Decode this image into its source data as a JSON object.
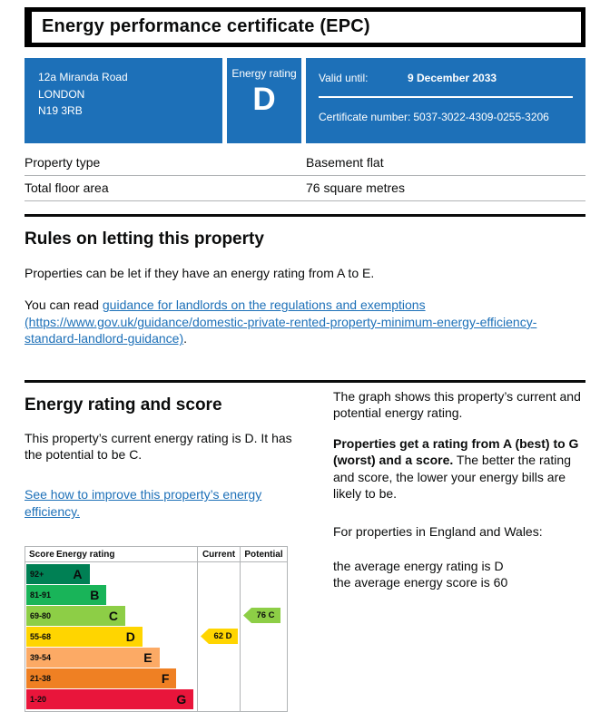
{
  "colors": {
    "govuk_blue": "#1d70b8",
    "border_gray": "#b1b4b6",
    "text_black": "#0b0c0c"
  },
  "header": {
    "title": "Energy performance certificate (EPC)"
  },
  "summary_panel": {
    "address_lines": [
      "12a Miranda Road",
      "LONDON",
      "N19 3RB"
    ],
    "energy_rating_label": "Energy rating",
    "energy_rating_value": "D",
    "valid_until_label": "Valid until:",
    "valid_until_value": "9 December 2033",
    "certificate_number_label": "Certificate number:",
    "certificate_number_value": "5037-3022-4309-0255-3206"
  },
  "property_details": {
    "rows": [
      {
        "label": "Property type",
        "value": "Basement flat"
      },
      {
        "label": "Total floor area",
        "value": "76 square metres"
      }
    ]
  },
  "rules_section": {
    "heading": "Rules on letting this property",
    "paragraph1": "Properties can be let if they have an energy rating from A to E.",
    "paragraph2_prefix": "You can read ",
    "paragraph2_link": "guidance for landlords on the regulations and exemptions (https://www.gov.uk/guidance/domestic-private-rented-property-minimum-energy-efficiency-standard-landlord-guidance)",
    "paragraph2_suffix": "."
  },
  "rating_section": {
    "heading": "Energy rating and score",
    "current_rating_text": "This property’s current energy rating is D. It has the potential to be C.",
    "improve_link": "See how to improve this property’s energy efficiency.",
    "graph_intro": "The graph shows this property’s current and potential energy rating.",
    "rating_explainer_bold": "Properties get a rating from A (best) to G (worst) and a score.",
    "rating_explainer_rest": " The better the rating and score, the lower your energy bills are likely to be.",
    "england_wales_intro": "For properties in England and Wales:",
    "average_rating_line": "the average energy rating is D",
    "average_score_line": "the average energy score is 60"
  },
  "chart_data": {
    "type": "epc-rating-bands",
    "headers": {
      "score": "Score",
      "energy_rating": "Energy rating",
      "current": "Current",
      "potential": "Potential"
    },
    "bands": [
      {
        "score_range": "92+",
        "letter": "A",
        "color": "#008054",
        "bar_width_pct": 37
      },
      {
        "score_range": "81-91",
        "letter": "B",
        "color": "#19b459",
        "bar_width_pct": 47
      },
      {
        "score_range": "69-80",
        "letter": "C",
        "color": "#8dce46",
        "bar_width_pct": 58
      },
      {
        "score_range": "55-68",
        "letter": "D",
        "color": "#ffd500",
        "bar_width_pct": 68
      },
      {
        "score_range": "39-54",
        "letter": "E",
        "color": "#fcaa65",
        "bar_width_pct": 78
      },
      {
        "score_range": "21-38",
        "letter": "F",
        "color": "#ef8023",
        "bar_width_pct": 88
      },
      {
        "score_range": "1-20",
        "letter": "G",
        "color": "#e9153b",
        "bar_width_pct": 98
      }
    ],
    "current": {
      "score": 62,
      "letter": "D",
      "label": "62 D",
      "color": "#ffd500",
      "band_index": 3
    },
    "potential": {
      "score": 76,
      "letter": "C",
      "label": "76 C",
      "color": "#8dce46",
      "band_index": 2
    }
  }
}
